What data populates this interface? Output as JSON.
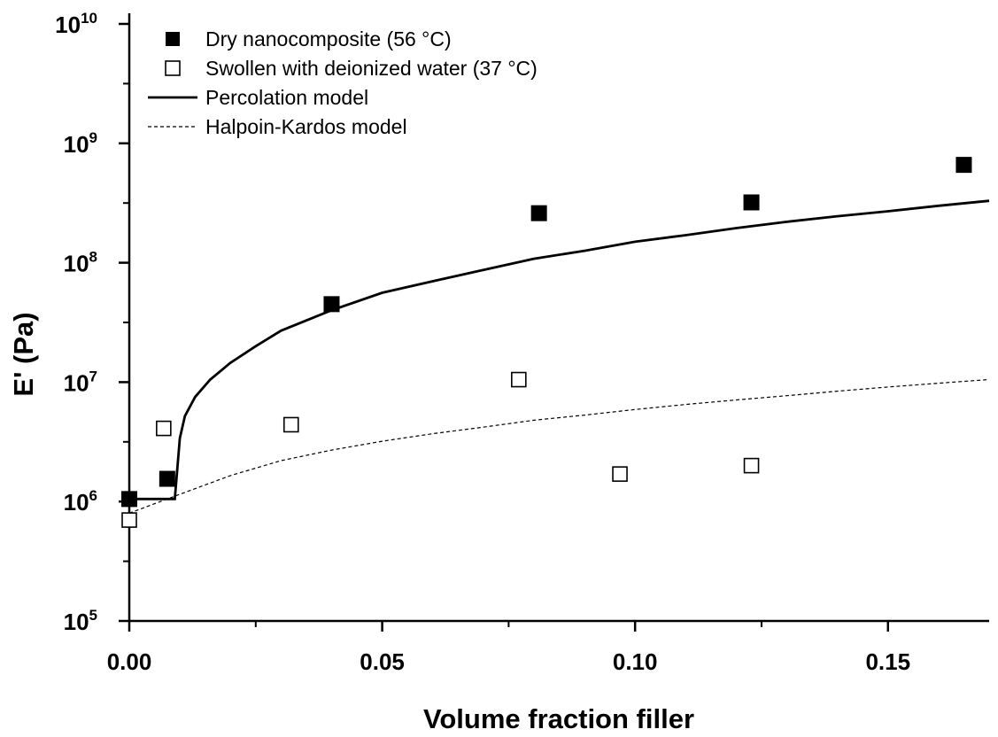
{
  "chart_data": {
    "type": "scatter",
    "xlabel": "Volume fraction filler",
    "ylabel": "E' (Pa)",
    "xlim": [
      0,
      0.17
    ],
    "ylim": [
      100000,
      10000000000
    ],
    "yscale": "log",
    "x_ticks": [
      {
        "value": 0.0,
        "label": "0.00"
      },
      {
        "value": 0.05,
        "label": "0.05"
      },
      {
        "value": 0.1,
        "label": "0.10"
      },
      {
        "value": 0.15,
        "label": "0.15"
      }
    ],
    "y_ticks": [
      {
        "value": 100000,
        "base": "10",
        "exp": "5"
      },
      {
        "value": 1000000,
        "base": "10",
        "exp": "6"
      },
      {
        "value": 10000000,
        "base": "10",
        "exp": "7"
      },
      {
        "value": 100000000,
        "base": "10",
        "exp": "8"
      },
      {
        "value": 1000000000,
        "base": "10",
        "exp": "9"
      },
      {
        "value": 10000000000,
        "base": "10",
        "exp": "10"
      }
    ],
    "grid": false,
    "legend_position": "top-left",
    "series": [
      {
        "name": "Dry nanocomposite (56 °C)",
        "kind": "scatter",
        "marker": "filled-square",
        "points": [
          [
            0.0,
            1050000
          ],
          [
            0.0075,
            1550000
          ],
          [
            0.04,
            45000000
          ],
          [
            0.081,
            260000000
          ],
          [
            0.123,
            320000000
          ],
          [
            0.165,
            660000000
          ]
        ]
      },
      {
        "name": "Swollen with deionized water (37 °C)",
        "kind": "scatter",
        "marker": "open-square",
        "points": [
          [
            0.0,
            700000
          ],
          [
            0.0068,
            4100000
          ],
          [
            0.032,
            4400000
          ],
          [
            0.077,
            10500000
          ],
          [
            0.097,
            1700000
          ],
          [
            0.123,
            2000000
          ]
        ]
      },
      {
        "name": "Percolation model",
        "kind": "line",
        "style": "solid",
        "points": [
          [
            0.0,
            1050000
          ],
          [
            0.009,
            1050000
          ],
          [
            0.01,
            3400000
          ],
          [
            0.011,
            5200000
          ],
          [
            0.013,
            7500000
          ],
          [
            0.016,
            10500000
          ],
          [
            0.02,
            14500000
          ],
          [
            0.025,
            20000000
          ],
          [
            0.03,
            27000000
          ],
          [
            0.04,
            40000000
          ],
          [
            0.05,
            56000000
          ],
          [
            0.06,
            70000000
          ],
          [
            0.07,
            87000000
          ],
          [
            0.08,
            108000000
          ],
          [
            0.09,
            126000000
          ],
          [
            0.1,
            150000000
          ],
          [
            0.11,
            170000000
          ],
          [
            0.12,
            195000000
          ],
          [
            0.13,
            220000000
          ],
          [
            0.14,
            245000000
          ],
          [
            0.15,
            270000000
          ],
          [
            0.16,
            300000000
          ],
          [
            0.17,
            330000000
          ]
        ]
      },
      {
        "name": "Halpoin-Kardos model",
        "kind": "line",
        "style": "dashed",
        "points": [
          [
            0.0,
            800000
          ],
          [
            0.01,
            1150000
          ],
          [
            0.02,
            1650000
          ],
          [
            0.03,
            2200000
          ],
          [
            0.04,
            2700000
          ],
          [
            0.05,
            3200000
          ],
          [
            0.06,
            3700000
          ],
          [
            0.07,
            4200000
          ],
          [
            0.08,
            4800000
          ],
          [
            0.09,
            5300000
          ],
          [
            0.1,
            5900000
          ],
          [
            0.11,
            6500000
          ],
          [
            0.12,
            7100000
          ],
          [
            0.13,
            7700000
          ],
          [
            0.14,
            8400000
          ],
          [
            0.15,
            9100000
          ],
          [
            0.16,
            9800000
          ],
          [
            0.17,
            10500000
          ]
        ]
      }
    ]
  }
}
